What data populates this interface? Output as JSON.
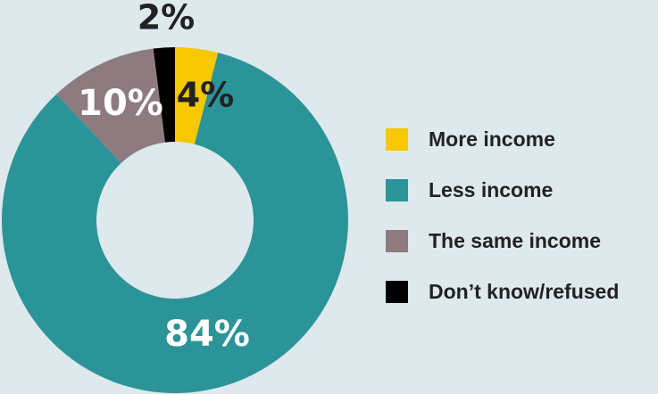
{
  "chart_data": {
    "type": "pie",
    "variant": "donut",
    "start": "top",
    "direction": "clockwise",
    "slices": [
      {
        "name": "More income",
        "value": 4,
        "label": "4%",
        "color": "#f5c800",
        "label_color": "#222222"
      },
      {
        "name": "Less income",
        "value": 84,
        "label": "84%",
        "color": "#2b9499",
        "label_color": "#ffffff"
      },
      {
        "name": "The same income",
        "value": 10,
        "label": "10%",
        "color": "#8d7b80",
        "label_color": "#ffffff"
      },
      {
        "name": "Don’t know/refused",
        "value": 2,
        "label": "2%",
        "color": "#000000",
        "label_color": "#222222"
      }
    ],
    "legend_position": "right"
  },
  "background": "#dde9ec"
}
